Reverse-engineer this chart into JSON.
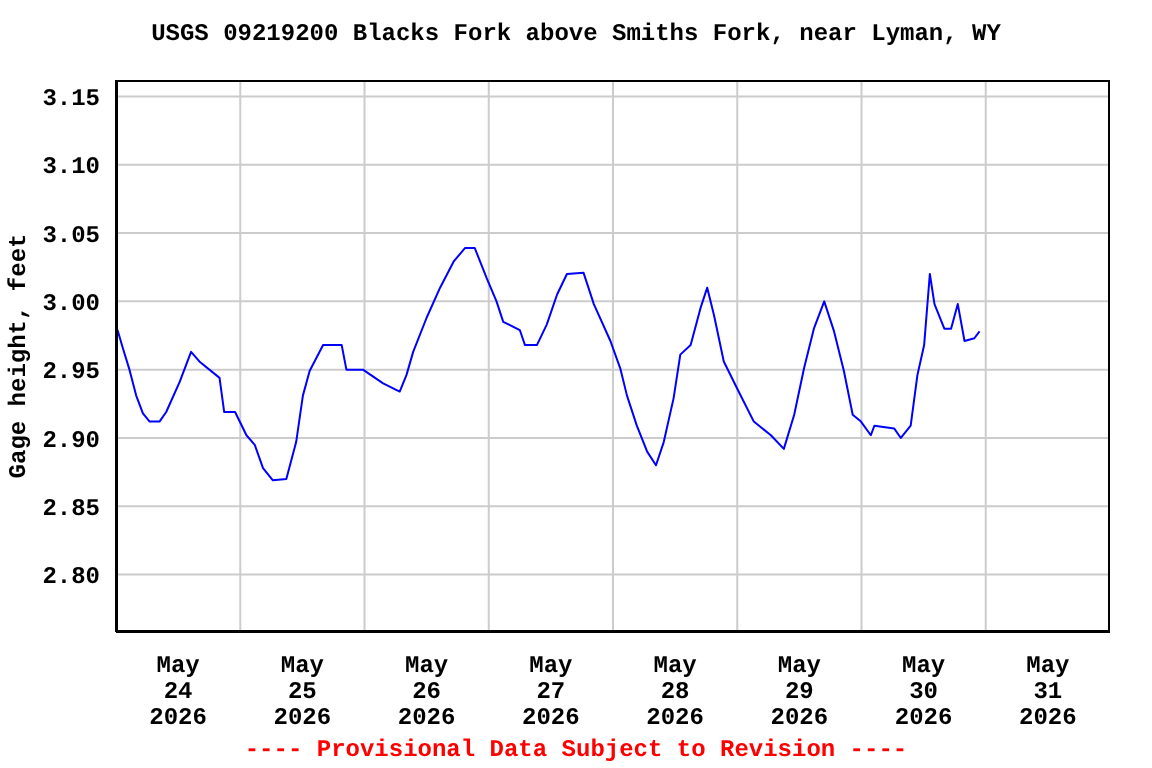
{
  "chart_data": {
    "type": "line",
    "title": "USGS 09219200 Blacks Fork above Smiths Fork, near Lyman, WY",
    "ylabel": "Gage height, feet",
    "annotations": [
      "---- Provisional Data Subject to Revision ----"
    ],
    "x": [
      "2026-05-24T00:18",
      "2026-05-24T01:18",
      "2026-05-24T02:36",
      "2026-05-24T03:54",
      "2026-05-24T05:12",
      "2026-05-24T06:30",
      "2026-05-24T08:24",
      "2026-05-24T09:42",
      "2026-05-24T12:18",
      "2026-05-24T14:30",
      "2026-05-24T16:06",
      "2026-05-24T20:00",
      "2026-05-24T20:54",
      "2026-05-24T23:00",
      "2026-05-25T01:12",
      "2026-05-25T02:48",
      "2026-05-25T04:24",
      "2026-05-25T06:18",
      "2026-05-25T08:54",
      "2026-05-25T10:48",
      "2026-05-25T12:06",
      "2026-05-25T13:24",
      "2026-05-25T16:00",
      "2026-05-25T19:36",
      "2026-05-25T20:30",
      "2026-05-25T23:42",
      "2026-05-26T03:36",
      "2026-05-26T06:48",
      "2026-05-26T08:06",
      "2026-05-26T09:24",
      "2026-05-26T12:00",
      "2026-05-26T14:36",
      "2026-05-26T17:12",
      "2026-05-26T19:24",
      "2026-05-26T21:18",
      "2026-05-26T23:36",
      "2026-05-27T01:30",
      "2026-05-27T02:48",
      "2026-05-27T06:00",
      "2026-05-27T07:00",
      "2026-05-27T09:18",
      "2026-05-27T11:12",
      "2026-05-27T13:12",
      "2026-05-27T15:06",
      "2026-05-27T18:18",
      "2026-05-27T20:18",
      "2026-05-27T23:30",
      "2026-05-28T01:24",
      "2026-05-28T02:42",
      "2026-05-28T04:36",
      "2026-05-28T06:36",
      "2026-05-28T08:18",
      "2026-05-28T09:48",
      "2026-05-28T11:42",
      "2026-05-28T13:00",
      "2026-05-28T15:00",
      "2026-05-28T16:54",
      "2026-05-28T18:12",
      "2026-05-28T19:30",
      "2026-05-28T21:24",
      "2026-05-29T00:00",
      "2026-05-29T03:12",
      "2026-05-29T06:30",
      "2026-05-29T09:00",
      "2026-05-29T11:00",
      "2026-05-29T12:54",
      "2026-05-29T14:48",
      "2026-05-29T16:48",
      "2026-05-29T18:42",
      "2026-05-29T20:36",
      "2026-05-29T22:18",
      "2026-05-29T23:54",
      "2026-05-30T01:48",
      "2026-05-30T02:30",
      "2026-05-30T06:18",
      "2026-05-30T07:36",
      "2026-05-30T09:30",
      "2026-05-30T10:48",
      "2026-05-30T12:06",
      "2026-05-30T13:12",
      "2026-05-30T14:06",
      "2026-05-30T16:00",
      "2026-05-30T17:18",
      "2026-05-30T18:36",
      "2026-05-30T19:54",
      "2026-05-30T21:48",
      "2026-05-30T22:48"
    ],
    "series": [
      {
        "color": "#0000ff",
        "values": [
          2.979,
          2.966,
          2.95,
          2.931,
          2.918,
          2.912,
          2.912,
          2.919,
          2.941,
          2.963,
          2.956,
          2.944,
          2.919,
          2.919,
          2.902,
          2.895,
          2.878,
          2.869,
          2.87,
          2.897,
          2.931,
          2.949,
          2.968,
          2.968,
          2.95,
          2.95,
          2.94,
          2.934,
          2.946,
          2.963,
          2.988,
          3.01,
          3.029,
          3.039,
          3.039,
          3.017,
          3.0,
          2.985,
          2.979,
          2.968,
          2.968,
          2.983,
          3.005,
          3.02,
          3.021,
          2.998,
          2.971,
          2.951,
          2.931,
          2.909,
          2.89,
          2.88,
          2.897,
          2.929,
          2.961,
          2.968,
          2.995,
          3.01,
          2.99,
          2.956,
          2.936,
          2.912,
          2.902,
          2.892,
          2.917,
          2.951,
          2.98,
          3.0,
          2.978,
          2.949,
          2.917,
          2.912,
          2.902,
          2.909,
          2.907,
          2.9,
          2.909,
          2.946,
          2.968,
          3.02,
          2.998,
          2.98,
          2.98,
          2.998,
          2.971,
          2.973,
          2.978
        ]
      }
    ],
    "xlim": [
      "2026-05-24T00:00",
      "2026-06-01T00:00"
    ],
    "xticks": [
      {
        "value": "2026-05-24T00:00",
        "label": null
      },
      {
        "value": "2026-05-24T12:00",
        "label": "May\n24\n2026"
      },
      {
        "value": "2026-05-25T00:00",
        "label": null
      },
      {
        "value": "2026-05-25T12:00",
        "label": "May\n25\n2026"
      },
      {
        "value": "2026-05-26T00:00",
        "label": null
      },
      {
        "value": "2026-05-26T12:00",
        "label": "May\n26\n2026"
      },
      {
        "value": "2026-05-27T00:00",
        "label": null
      },
      {
        "value": "2026-05-27T12:00",
        "label": "May\n27\n2026"
      },
      {
        "value": "2026-05-28T00:00",
        "label": null
      },
      {
        "value": "2026-05-28T12:00",
        "label": "May\n28\n2026"
      },
      {
        "value": "2026-05-29T00:00",
        "label": null
      },
      {
        "value": "2026-05-29T12:00",
        "label": "May\n29\n2026"
      },
      {
        "value": "2026-05-30T00:00",
        "label": null
      },
      {
        "value": "2026-05-30T12:00",
        "label": "May\n30\n2026"
      },
      {
        "value": "2026-05-31T00:00",
        "label": null
      },
      {
        "value": "2026-05-31T12:00",
        "label": "May\n31\n2026"
      },
      {
        "value": "2026-06-01T00:00",
        "label": null
      }
    ],
    "ylim": [
      2.758,
      3.162
    ],
    "yticks": [
      {
        "value": 2.8,
        "label": "2.80"
      },
      {
        "value": 2.85,
        "label": "2.85"
      },
      {
        "value": 2.9,
        "label": "2.90"
      },
      {
        "value": 2.95,
        "label": "2.95"
      },
      {
        "value": 3.0,
        "label": "3.00"
      },
      {
        "value": 3.05,
        "label": "3.05"
      },
      {
        "value": 3.1,
        "label": "3.10"
      },
      {
        "value": 3.15,
        "label": "3.15"
      }
    ],
    "grid": true,
    "legend": false,
    "marker": "none",
    "line_style": "solid"
  }
}
